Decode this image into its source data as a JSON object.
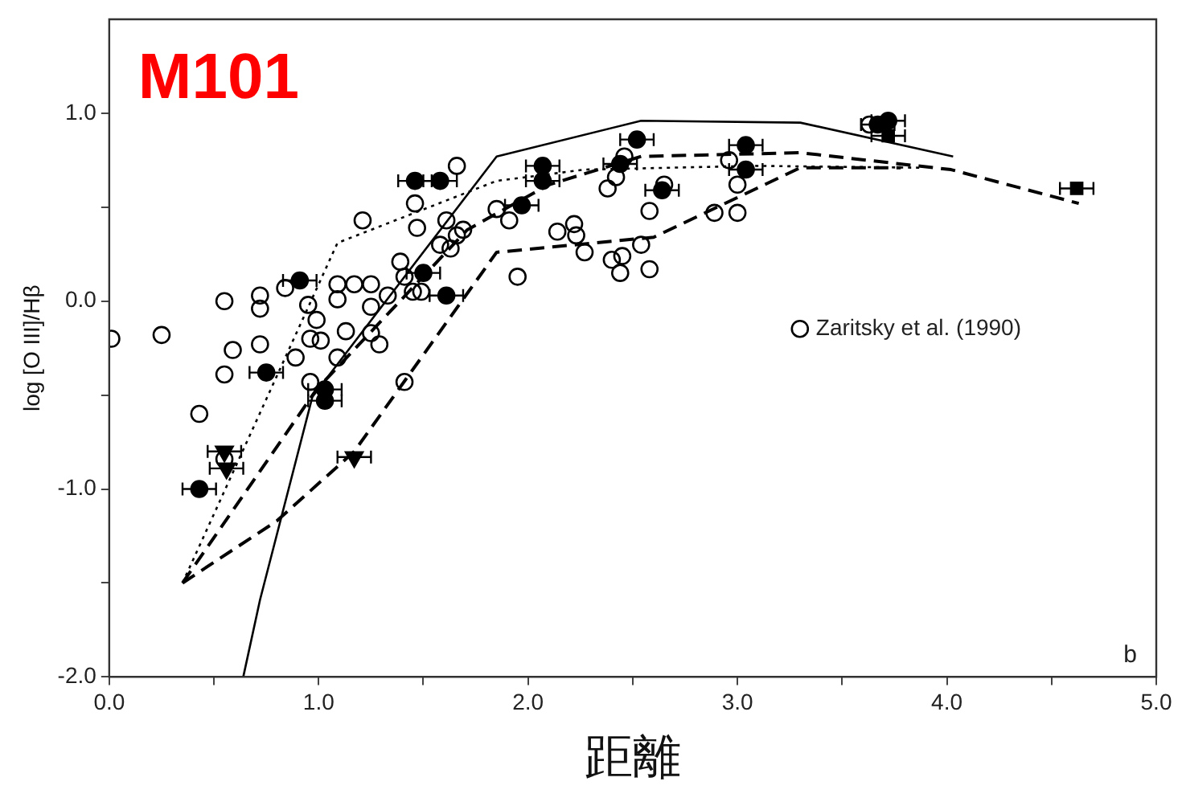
{
  "chart_data": {
    "type": "scatter",
    "title": "M101",
    "xlabel": "距離",
    "ylabel": "log [O III]/Hβ",
    "xlim": [
      0,
      5
    ],
    "ylim": [
      -2,
      1.5
    ],
    "xticks": [
      {
        "value": 0,
        "label": "0.0"
      },
      {
        "value": 0.5,
        "label": null
      },
      {
        "value": 1,
        "label": "1.0"
      },
      {
        "value": 1.5,
        "label": null
      },
      {
        "value": 2,
        "label": "2.0"
      },
      {
        "value": 2.5,
        "label": null
      },
      {
        "value": 3,
        "label": "3.0"
      },
      {
        "value": 3.5,
        "label": null
      },
      {
        "value": 4,
        "label": "4.0"
      },
      {
        "value": 4.5,
        "label": null
      },
      {
        "value": 5,
        "label": "5.0"
      }
    ],
    "yticks": [
      {
        "value": -2,
        "label": "-2.0"
      },
      {
        "value": -1.5,
        "label": null
      },
      {
        "value": -1,
        "label": "-1.0"
      },
      {
        "value": -0.5,
        "label": null
      },
      {
        "value": 0,
        "label": "0.0"
      },
      {
        "value": 0.5,
        "label": null
      },
      {
        "value": 1,
        "label": "1.0"
      }
    ],
    "grid": false,
    "legend": "right",
    "annotations": [
      "b"
    ],
    "series": [
      {
        "name": "Zaritsky et al. (1990)",
        "marker": "circle",
        "color": "#000000",
        "x": [
          0.01,
          0.25,
          0.55,
          0.72,
          0.72,
          0.59,
          0.72,
          0.55,
          0.89,
          0.96,
          0.84,
          0.95,
          1.09,
          1.09,
          1.17,
          1.25,
          0.99,
          0.96,
          1.01,
          1.13,
          1.25,
          1.25,
          1.29,
          1.33,
          1.39,
          1.41,
          1.45,
          1.49,
          1.21,
          1.47,
          1.58,
          1.66,
          1.69,
          1.63,
          1.66,
          1.46,
          1.61,
          1.85,
          1.91,
          1.95,
          2.14,
          2.22,
          2.23,
          2.27,
          2.38,
          2.4,
          2.45,
          2.44,
          2.42,
          2.46,
          2.54,
          2.58,
          2.58,
          2.65,
          2.89,
          3.0,
          2.96,
          3.0,
          3.63,
          0.43,
          1.41,
          0.55,
          1.09
        ],
        "values": [
          -0.2,
          -0.18,
          0.0,
          0.03,
          -0.04,
          -0.26,
          -0.23,
          -0.39,
          -0.3,
          -0.43,
          0.07,
          -0.02,
          0.09,
          0.01,
          0.09,
          0.09,
          -0.1,
          -0.2,
          -0.21,
          -0.16,
          -0.03,
          -0.17,
          -0.23,
          0.03,
          0.21,
          0.13,
          0.05,
          0.05,
          0.43,
          0.39,
          0.3,
          0.35,
          0.38,
          0.28,
          0.72,
          0.52,
          0.43,
          0.49,
          0.43,
          0.13,
          0.37,
          0.41,
          0.35,
          0.26,
          0.6,
          0.22,
          0.24,
          0.15,
          0.66,
          0.77,
          0.3,
          0.17,
          0.48,
          0.62,
          0.47,
          0.47,
          0.75,
          0.62,
          0.94,
          -0.6,
          -0.43,
          -0.84,
          -0.3
        ]
      },
      {
        "marker": "circle",
        "color": "#000000",
        "x": [
          0.43,
          0.75,
          0.91,
          1.03,
          1.03,
          1.46,
          1.58,
          1.5,
          1.61,
          1.97,
          2.07,
          2.07,
          2.52,
          2.44,
          2.64,
          3.04,
          3.04,
          3.72,
          3.67
        ],
        "values": [
          -1.0,
          -0.38,
          0.11,
          -0.53,
          -0.47,
          0.64,
          0.64,
          0.15,
          0.03,
          0.51,
          0.72,
          0.64,
          0.86,
          0.73,
          0.59,
          0.83,
          0.7,
          0.96,
          0.94
        ],
        "xerrors": [
          0.08,
          0.08,
          0.08,
          0.08,
          0.08,
          0.08,
          0.08,
          0.08,
          0.08,
          0.08,
          0.08,
          0.08,
          0.08,
          0.08,
          0.08,
          0.08,
          0.08,
          0.08,
          0.08
        ]
      },
      {
        "marker": "triangle",
        "color": "#000000",
        "x": [
          0.55,
          0.56,
          1.17
        ],
        "values": [
          -0.8,
          -0.89,
          -0.83
        ],
        "xerrors": [
          0.08,
          0.08,
          0.08
        ]
      },
      {
        "marker": "square",
        "color": "#000000",
        "x": [
          3.72,
          4.62
        ],
        "values": [
          0.88,
          0.6
        ],
        "xerrors": [
          0.08,
          0.08
        ]
      },
      {
        "type": "line",
        "line_style": "solid",
        "marker": "none",
        "color": "#000000",
        "x": [
          0.64,
          0.72,
          0.97,
          1.85,
          2.54,
          3.3,
          4.03
        ],
        "values": [
          -2.0,
          -1.59,
          -0.51,
          0.77,
          0.96,
          0.95,
          0.77
        ]
      },
      {
        "type": "line",
        "line_style": "dashed",
        "marker": "none",
        "color": "#000000",
        "x": [
          0.35,
          0.99,
          1.71,
          2.1,
          2.54,
          3.3,
          4.02,
          4.63
        ],
        "values": [
          -1.5,
          -0.47,
          0.38,
          0.62,
          0.77,
          0.79,
          0.7,
          0.52
        ]
      },
      {
        "type": "line",
        "line_style": "dotted",
        "marker": "none",
        "color": "#000000",
        "x": [
          0.35,
          1.09,
          1.85,
          2.27,
          3.08,
          3.88
        ],
        "values": [
          -1.5,
          0.31,
          0.64,
          0.7,
          0.72,
          0.71
        ]
      },
      {
        "type": "line",
        "line_style": "dashed",
        "marker": "none",
        "color": "#000000",
        "x": [
          0.35,
          0.8,
          1.17,
          1.85,
          2.6,
          3.3,
          3.78
        ],
        "values": [
          -1.5,
          -1.17,
          -0.8,
          0.26,
          0.34,
          0.71,
          0.71
        ]
      }
    ]
  }
}
